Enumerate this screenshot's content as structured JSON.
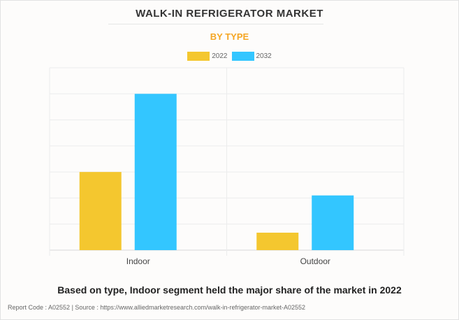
{
  "title": "WALK-IN REFRIGERATOR MARKET",
  "subtitle": "BY TYPE",
  "caption": "Based on type, Indoor segment held the major share of the market in 2022",
  "source": "Report Code : A02552  |  Source : https://www.alliedmarketresearch.com/walk-in-refrigerator-market-A02552",
  "chart_data": {
    "type": "bar",
    "categories": [
      "Indoor",
      "Outdoor"
    ],
    "series": [
      {
        "name": "2022",
        "color": "#f4c72f",
        "values": [
          3.0,
          0.67
        ]
      },
      {
        "name": "2032",
        "color": "#33c6ff",
        "values": [
          6.0,
          2.1
        ]
      }
    ],
    "ylim": [
      0,
      7
    ],
    "grid": true,
    "legend": "top-center",
    "xlabel": "",
    "ylabel": ""
  }
}
